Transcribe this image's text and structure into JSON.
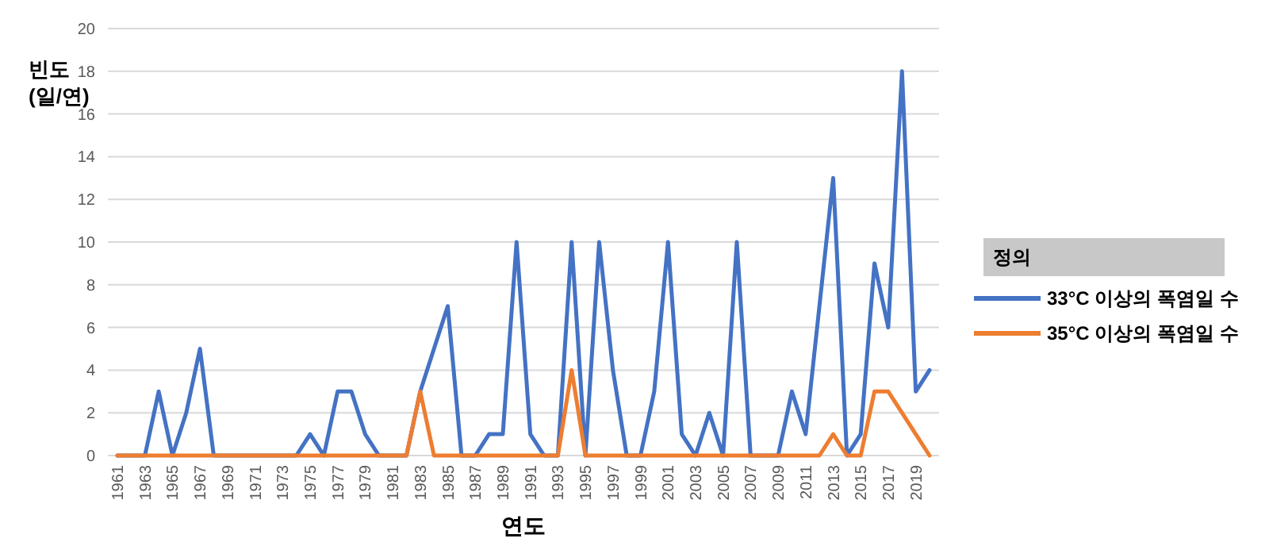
{
  "chart_data": {
    "type": "line",
    "xlabel": "연도",
    "ylabel": "빈도\n(일/연)",
    "legend_title": "정의",
    "legend": "right",
    "grid": "y",
    "line_style": "solid",
    "marker": "none",
    "categories": [
      "1961",
      null,
      "1963",
      null,
      "1965",
      null,
      "1967",
      null,
      "1969",
      null,
      "1971",
      null,
      "1973",
      null,
      "1975",
      null,
      "1977",
      null,
      "1979",
      null,
      "1981",
      null,
      "1983",
      null,
      "1985",
      null,
      "1987",
      null,
      "1989",
      null,
      "1991",
      null,
      "1993",
      null,
      "1995",
      null,
      "1997",
      null,
      "1999",
      null,
      "2001",
      null,
      "2003",
      null,
      "2005",
      null,
      "2007",
      null,
      "2009",
      null,
      "2011",
      null,
      "2013",
      null,
      "2015",
      null,
      "2017",
      null,
      "2019",
      null
    ],
    "ylim": [
      0,
      20
    ],
    "yticks": [
      0,
      2,
      4,
      6,
      8,
      10,
      12,
      14,
      16,
      18,
      20
    ],
    "series": [
      {
        "name": "33°C 이상의 폭염일 수",
        "color": "#4472c4",
        "values": [
          0,
          0,
          0,
          3,
          0,
          2,
          5,
          0,
          0,
          0,
          0,
          0,
          0,
          0,
          1,
          0,
          3,
          3,
          1,
          0,
          0,
          0,
          3,
          5,
          7,
          0,
          0,
          1,
          1,
          10,
          1,
          0,
          0,
          10,
          0,
          10,
          4,
          0,
          0,
          3,
          10,
          1,
          0,
          2,
          0,
          10,
          0,
          0,
          0,
          3,
          1,
          7,
          13,
          0,
          1,
          9,
          6,
          18,
          3,
          4
        ]
      },
      {
        "name": "35°C 이상의 폭염일 수",
        "color": "#ed7d31",
        "values": [
          0,
          0,
          0,
          0,
          0,
          0,
          0,
          0,
          0,
          0,
          0,
          0,
          0,
          0,
          0,
          0,
          0,
          0,
          0,
          0,
          0,
          0,
          3,
          0,
          0,
          0,
          0,
          0,
          0,
          0,
          0,
          0,
          0,
          4,
          0,
          0,
          0,
          0,
          0,
          0,
          0,
          0,
          0,
          0,
          0,
          0,
          0,
          0,
          0,
          0,
          0,
          0,
          1,
          0,
          0,
          3,
          3,
          2,
          1,
          0
        ]
      }
    ]
  }
}
